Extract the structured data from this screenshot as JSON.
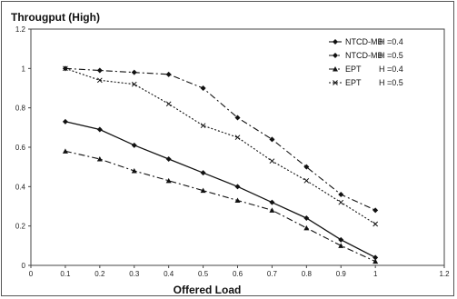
{
  "chart_data": {
    "type": "line",
    "title": "Througput (High)",
    "xlabel": "Offered Load",
    "ylabel": "",
    "xlim": [
      0,
      1.2
    ],
    "ylim": [
      0,
      1.2
    ],
    "x_ticks": [
      "0",
      "0.1",
      "0.2",
      "0.3",
      "0.4",
      "0.5",
      "0.6",
      "0.7",
      "0.8",
      "0.9",
      "1",
      "1.2"
    ],
    "y_ticks": [
      "0",
      "0.2",
      "0.4",
      "0.6",
      "0.8",
      "1",
      "1.2"
    ],
    "legend_placement": "top-right",
    "x": [
      0.1,
      0.2,
      0.3,
      0.4,
      0.5,
      0.6,
      0.7,
      0.8,
      0.9,
      1.0
    ],
    "series": [
      {
        "name": "NTCD-MB",
        "h_label": "H =0.4",
        "style": "solid",
        "marker": "diamond",
        "values": [
          0.73,
          0.69,
          0.61,
          0.54,
          0.47,
          0.4,
          0.32,
          0.24,
          0.13,
          0.04
        ]
      },
      {
        "name": "NTCD-MB",
        "h_label": "H =0.5",
        "style": "dashdot",
        "marker": "diamond",
        "values": [
          1.0,
          0.99,
          0.98,
          0.97,
          0.9,
          0.75,
          0.64,
          0.5,
          0.36,
          0.28
        ]
      },
      {
        "name": "EPT",
        "h_label": "H =0.4",
        "style": "dashdot",
        "marker": "triangle",
        "values": [
          0.58,
          0.54,
          0.48,
          0.43,
          0.38,
          0.33,
          0.28,
          0.19,
          0.1,
          0.02
        ]
      },
      {
        "name": "EPT",
        "h_label": "H =0.5",
        "style": "dotted",
        "marker": "cross",
        "values": [
          1.0,
          0.94,
          0.92,
          0.82,
          0.71,
          0.65,
          0.53,
          0.43,
          0.32,
          0.21
        ]
      }
    ]
  }
}
